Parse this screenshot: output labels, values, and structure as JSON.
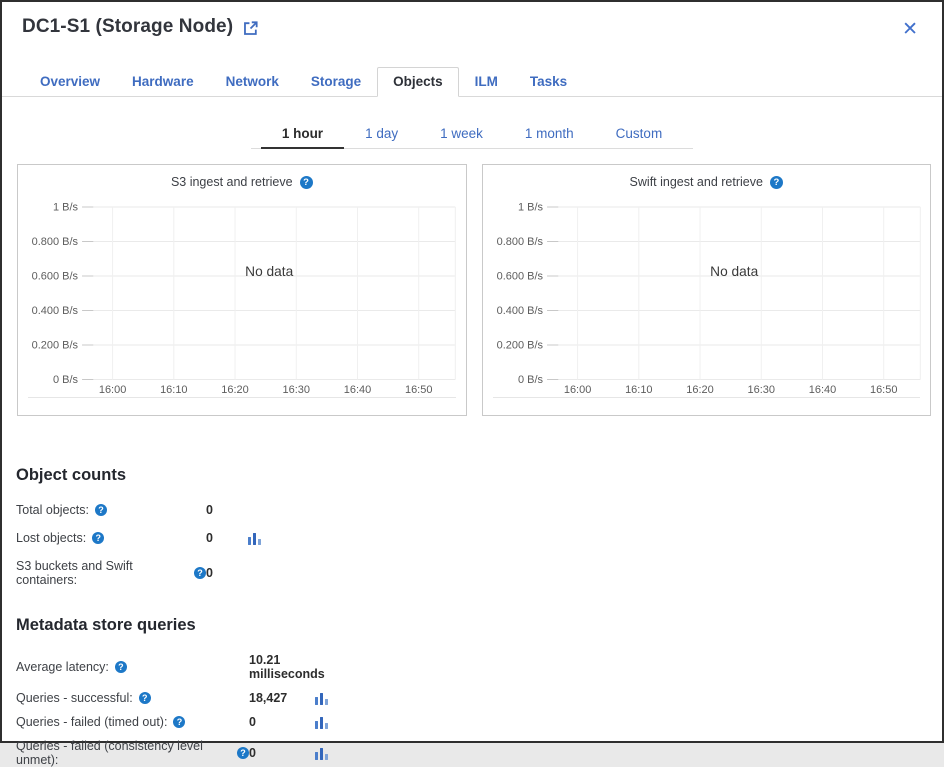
{
  "header": {
    "title": "DC1-S1 (Storage Node)"
  },
  "icons": {
    "help": "?",
    "close": "✕"
  },
  "tabs": [
    {
      "label": "Overview",
      "active": false
    },
    {
      "label": "Hardware",
      "active": false
    },
    {
      "label": "Network",
      "active": false
    },
    {
      "label": "Storage",
      "active": false
    },
    {
      "label": "Objects",
      "active": true
    },
    {
      "label": "ILM",
      "active": false
    },
    {
      "label": "Tasks",
      "active": false
    }
  ],
  "time_range": {
    "options": [
      {
        "label": "1 hour",
        "active": true
      },
      {
        "label": "1 day",
        "active": false
      },
      {
        "label": "1 week",
        "active": false
      },
      {
        "label": "1 month",
        "active": false
      },
      {
        "label": "Custom",
        "active": false
      }
    ]
  },
  "chart_data": [
    {
      "type": "line",
      "title": "S3 ingest and retrieve",
      "series": [],
      "no_data_label": "No data",
      "y_ticks": [
        "1 B/s",
        "0.800 B/s",
        "0.600 B/s",
        "0.400 B/s",
        "0.200 B/s",
        "0 B/s"
      ],
      "x_ticks": [
        "16:00",
        "16:10",
        "16:20",
        "16:30",
        "16:40",
        "16:50"
      ],
      "ylim": [
        0,
        1
      ],
      "ylabel": "B/s",
      "grid": true,
      "legend_position": "none"
    },
    {
      "type": "line",
      "title": "Swift ingest and retrieve",
      "series": [],
      "no_data_label": "No data",
      "y_ticks": [
        "1 B/s",
        "0.800 B/s",
        "0.600 B/s",
        "0.400 B/s",
        "0.200 B/s",
        "0 B/s"
      ],
      "x_ticks": [
        "16:00",
        "16:10",
        "16:20",
        "16:30",
        "16:40",
        "16:50"
      ],
      "ylim": [
        0,
        1
      ],
      "ylabel": "B/s",
      "grid": true,
      "legend_position": "none"
    }
  ],
  "sections": [
    {
      "heading": "Object counts",
      "rows": [
        {
          "label": "Total objects:",
          "value": "0",
          "help": true,
          "chart_icon": false
        },
        {
          "label": "Lost objects:",
          "value": "0",
          "help": true,
          "chart_icon": true
        },
        {
          "label": "S3 buckets and Swift containers:",
          "value": "0",
          "help": true,
          "chart_icon": false
        }
      ]
    },
    {
      "heading": "Metadata store queries",
      "rows": [
        {
          "label": "Average latency:",
          "value": "10.21 milliseconds",
          "help": true,
          "chart_icon": false
        },
        {
          "label": "Queries - successful:",
          "value": "18,427",
          "help": true,
          "chart_icon": true
        },
        {
          "label": "Queries - failed (timed out):",
          "value": "0",
          "help": true,
          "chart_icon": true
        },
        {
          "label": "Queries - failed (consistency level unmet):",
          "value": "0",
          "help": true,
          "chart_icon": true
        }
      ]
    }
  ],
  "colors": {
    "link_blue": "#3f6cc0",
    "help_icon_blue": "#1d78c7",
    "active_text": "#2e3138",
    "bar_icon_blue": "#3366bb",
    "grid_line": "#eaeaea",
    "panel_border": "#c9c9c9"
  }
}
